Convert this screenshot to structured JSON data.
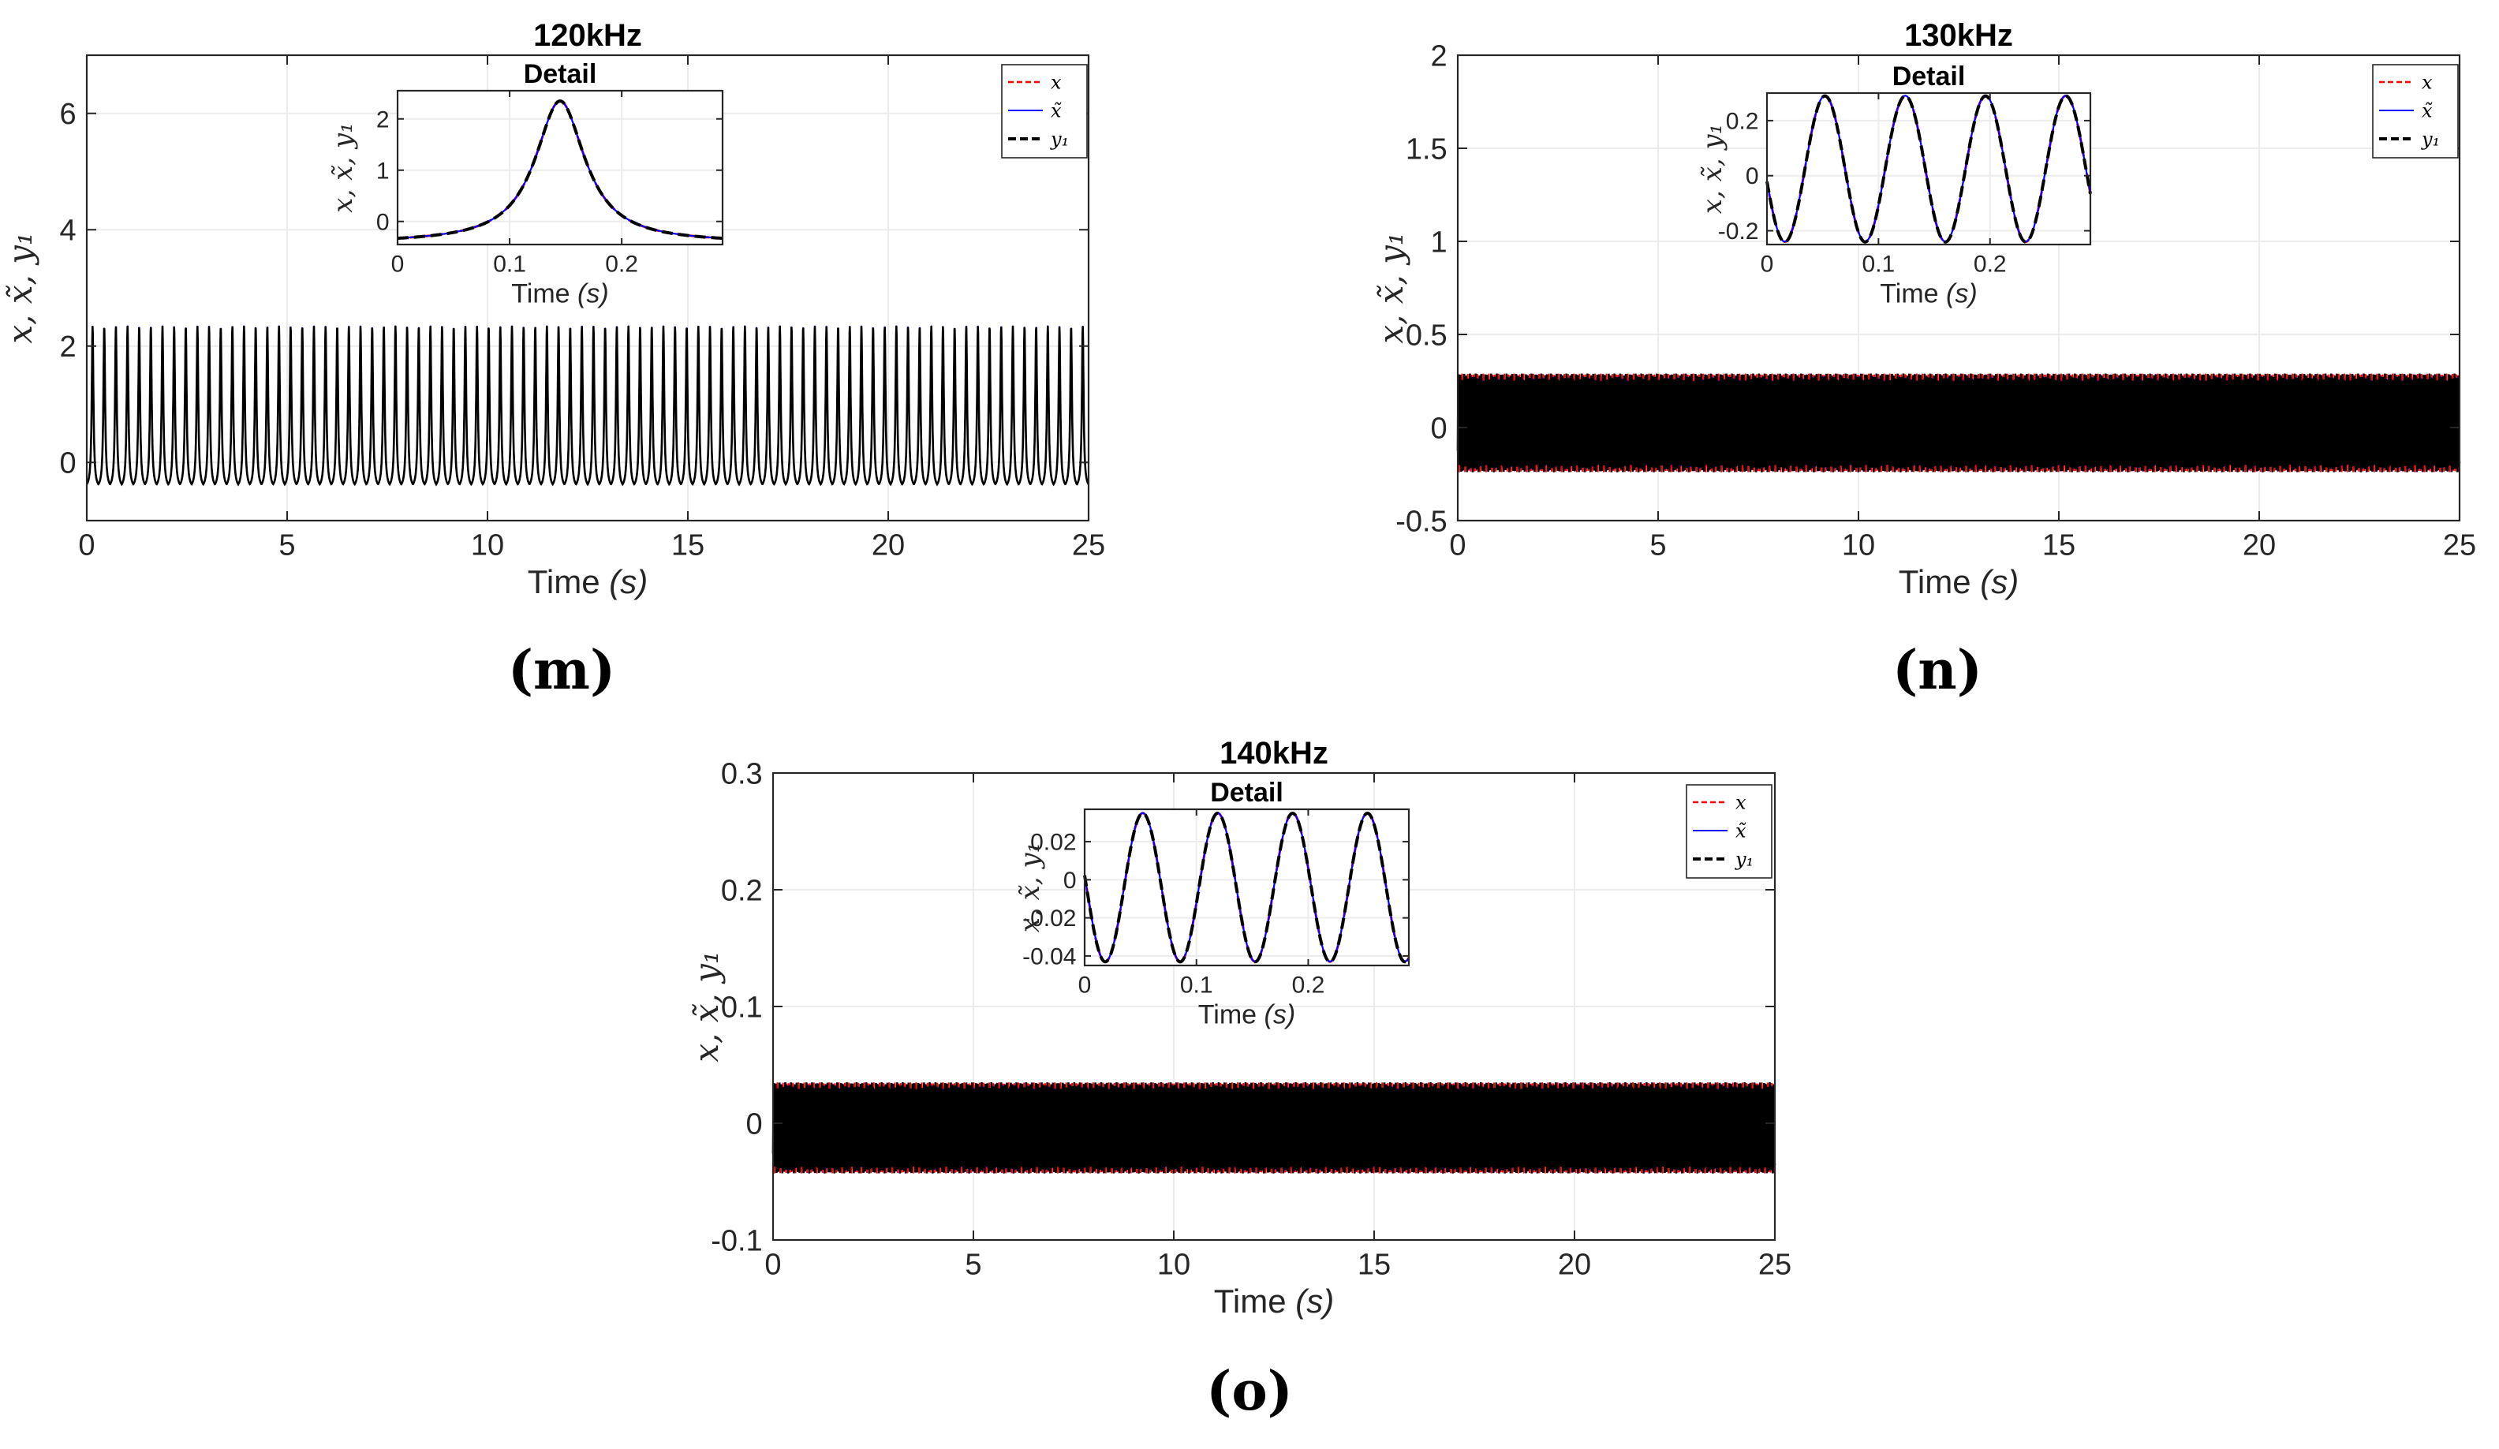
{
  "chart_data": [
    {
      "type": "line",
      "title": "120kHz",
      "caption": "(m)",
      "xlabel_main": "Time ",
      "xlabel_unit": "(s)",
      "ylabel": "x, x̃, y₁",
      "xlim": [
        0,
        25
      ],
      "ylim": [
        -1,
        7
      ],
      "xticks": [
        "0",
        "5",
        "10",
        "15",
        "20",
        "25"
      ],
      "yticks": [
        "0",
        "2",
        "4",
        "6"
      ],
      "signal": {
        "kind": "pulse",
        "max": 2.35,
        "min": -0.45,
        "period": 0.29,
        "cycles_to_draw": 86
      },
      "legend": [
        "x",
        "x̃",
        "y₁"
      ],
      "inset": {
        "title": "Detail",
        "xlabel_main": "Time ",
        "xlabel_unit": "(s)",
        "ylabel": "x, x̃, y₁",
        "xlim": [
          0,
          0.29
        ],
        "ylim": [
          -0.45,
          2.55
        ],
        "xticks": [
          "0",
          "0.1",
          "0.2"
        ],
        "yticks": [
          "0",
          "1",
          "2"
        ],
        "peak_time": 0.145,
        "peak_value": 2.35,
        "base_value": -0.42
      }
    },
    {
      "type": "line",
      "title": "130kHz",
      "caption": "(n)",
      "xlabel_main": "Time ",
      "xlabel_unit": "(s)",
      "ylabel": "x, x̃, y₁",
      "xlim": [
        0,
        25
      ],
      "ylim": [
        -0.5,
        2
      ],
      "xticks": [
        "0",
        "5",
        "10",
        "15",
        "20",
        "25"
      ],
      "yticks": [
        "-0.5",
        "0",
        "0.5",
        "1",
        "1.5",
        "2"
      ],
      "signal": {
        "kind": "sine",
        "max": 0.29,
        "min": -0.24,
        "period": 0.072
      },
      "legend": [
        "x",
        "x̃",
        "y₁"
      ],
      "inset": {
        "title": "Detail",
        "xlabel_main": "Time ",
        "xlabel_unit": "(s)",
        "ylabel": "x, x̃, y₁",
        "xlim": [
          0,
          0.29
        ],
        "ylim": [
          -0.25,
          0.3
        ],
        "xticks": [
          "0",
          "0.1",
          "0.2"
        ],
        "yticks": [
          "-0.2",
          "0",
          "0.2"
        ],
        "period": 0.072,
        "amplitude_max": 0.29,
        "amplitude_min": -0.24
      }
    },
    {
      "type": "line",
      "title": "140kHz",
      "caption": "(o)",
      "xlabel_main": "Time ",
      "xlabel_unit": "(s)",
      "ylabel": "x, x̃, y₁",
      "xlim": [
        0,
        25
      ],
      "ylim": [
        -0.1,
        0.3
      ],
      "xticks": [
        "0",
        "5",
        "10",
        "15",
        "20",
        "25"
      ],
      "yticks": [
        "-0.1",
        "0",
        "0.1",
        "0.2",
        "0.3"
      ],
      "signal": {
        "kind": "sine",
        "max": 0.035,
        "min": -0.043,
        "period": 0.067
      },
      "legend": [
        "x",
        "x̃",
        "y₁"
      ],
      "inset": {
        "title": "Detail",
        "xlabel_main": "Time ",
        "xlabel_unit": "(s)",
        "ylabel": "x, x̃, y₁",
        "xlim": [
          0,
          0.29
        ],
        "ylim": [
          -0.045,
          0.037
        ],
        "xticks": [
          "0",
          "0.1",
          "0.2"
        ],
        "yticks": [
          "-0.04",
          "-0.02",
          "0",
          "0.02"
        ],
        "period": 0.067,
        "amplitude_max": 0.035,
        "amplitude_min": -0.043
      }
    }
  ],
  "colors": {
    "x": "#ff0000",
    "xt": "#0000ff",
    "y1": "#000000",
    "grid": "#ececec",
    "axis": "#262626"
  }
}
